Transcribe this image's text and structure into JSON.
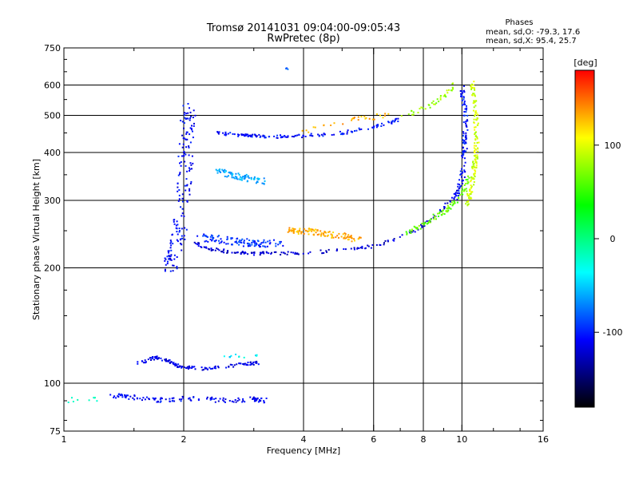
{
  "chart_data": {
    "type": "scatter",
    "title": "Tromsø 20141031 09:04:00-09:05:43",
    "subtitle": "RwPretec (8p)",
    "xlabel": "Frequency [MHz]",
    "ylabel": "Stationary phase Virtual Height [km]",
    "x_scale": "log",
    "y_scale": "log",
    "xlim": [
      1,
      16
    ],
    "ylim": [
      75,
      750
    ],
    "x_ticks": [
      1,
      2,
      4,
      6,
      8,
      10,
      16
    ],
    "y_ticks": [
      75,
      100,
      200,
      300,
      400,
      500,
      600,
      750
    ],
    "x_gridlines": [
      2,
      4,
      6,
      8,
      10
    ],
    "y_gridlines": [
      100,
      200,
      300,
      400,
      500,
      600
    ],
    "phases_box": {
      "heading": "Phases",
      "line_o": "mean, sd,O: -79.3, 17.6",
      "line_x": "mean, sd,X:  95.4, 25.7"
    },
    "colorbar": {
      "label": "[deg]",
      "range": [
        -180,
        180
      ],
      "ticks": [
        100,
        0,
        -100
      ],
      "colors": [
        "#ff0000",
        "#ffff00",
        "#00ff00",
        "#00ffff",
        "#0000ff",
        "#000000"
      ]
    },
    "traces": [
      {
        "x": [
          1.0,
          1.06,
          1.12,
          1.2
        ],
        "y": [
          90,
          91,
          92,
          91
        ],
        "phase": -10,
        "spread": 3,
        "n": 10
      },
      {
        "x": [
          1.32,
          1.5,
          1.7,
          1.9,
          2.2,
          2.6,
          3.0,
          3.2
        ],
        "y": [
          93,
          92,
          90,
          91,
          91,
          90,
          91,
          90
        ],
        "phase": -110,
        "spread": 3,
        "n": 130
      },
      {
        "x": [
          1.5,
          1.6,
          1.7,
          1.8,
          1.9,
          2.0,
          2.2,
          2.5,
          2.8,
          3.1
        ],
        "y": [
          113,
          114,
          117,
          115,
          112,
          110,
          109,
          110,
          112,
          113
        ],
        "phase": -115,
        "spread": 2,
        "n": 130
      },
      {
        "x": [
          2.5,
          2.7,
          2.9,
          3.1
        ],
        "y": [
          117,
          118,
          117,
          118
        ],
        "phase": -40,
        "spread": 2,
        "n": 12
      },
      {
        "x": [
          1.85,
          1.9,
          1.95,
          2.0,
          2.02,
          2.04,
          2.06
        ],
        "y": [
          200,
          220,
          250,
          300,
          380,
          450,
          530
        ],
        "phase": -110,
        "spread": 9,
        "n": 170
      },
      {
        "x": [
          2.1,
          2.3,
          2.6,
          3.0,
          3.5,
          4.0,
          5.0,
          6.0,
          7.0,
          8.0,
          9.0,
          10.0
        ],
        "y": [
          235,
          225,
          220,
          218,
          218,
          219,
          222,
          228,
          240,
          258,
          285,
          330
        ],
        "phase": -120,
        "spread": 2,
        "n": 170
      },
      {
        "x": [
          2.2,
          2.6,
          3.0,
          3.5
        ],
        "y": [
          240,
          235,
          232,
          232
        ],
        "phase": -95,
        "spread": 5,
        "n": 110
      },
      {
        "x": [
          3.65,
          4.2,
          4.8,
          5.5
        ],
        "y": [
          252,
          248,
          244,
          238
        ],
        "phase": 130,
        "spread": 4,
        "n": 110
      },
      {
        "x": [
          7.2,
          8.0,
          9.0,
          10.0,
          10.5
        ],
        "y": [
          246,
          260,
          280,
          310,
          350
        ],
        "phase": 65,
        "spread": 3,
        "n": 90
      },
      {
        "x": [
          9.6,
          10.0,
          10.15,
          10.2,
          10.2,
          10.0
        ],
        "y": [
          300,
          340,
          400,
          450,
          520,
          600
        ],
        "phase": -105,
        "spread": 3,
        "n": 110
      },
      {
        "x": [
          10.3,
          10.6,
          10.8,
          10.9,
          10.8,
          10.6
        ],
        "y": [
          290,
          330,
          380,
          430,
          520,
          620
        ],
        "phase": 95,
        "spread": 3,
        "n": 150
      },
      {
        "x": [
          2.4,
          2.7,
          3.0,
          3.5,
          4.0,
          5.0,
          6.0,
          7.0
        ],
        "y": [
          450,
          445,
          442,
          440,
          442,
          450,
          465,
          490
        ],
        "phase": -105,
        "spread": 2,
        "n": 140
      },
      {
        "x": [
          4.0,
          4.5,
          5.0,
          5.5,
          6.0,
          6.5
        ],
        "y": [
          450,
          470,
          480,
          490,
          495,
          500
        ],
        "phase": 130,
        "spread": 3,
        "n": 30
      },
      {
        "x": [
          7.0,
          8.0,
          9.0,
          9.5
        ],
        "y": [
          490,
          520,
          560,
          600
        ],
        "phase": 80,
        "spread": 3,
        "n": 40
      },
      {
        "x": [
          2.4,
          2.6,
          2.8,
          3.0,
          3.2
        ],
        "y": [
          360,
          350,
          345,
          340,
          335
        ],
        "phase": -60,
        "spread": 4,
        "n": 80
      },
      {
        "x": [
          3.6,
          3.65
        ],
        "y": [
          665,
          662
        ],
        "phase": -80,
        "spread": 1,
        "n": 4
      }
    ]
  }
}
